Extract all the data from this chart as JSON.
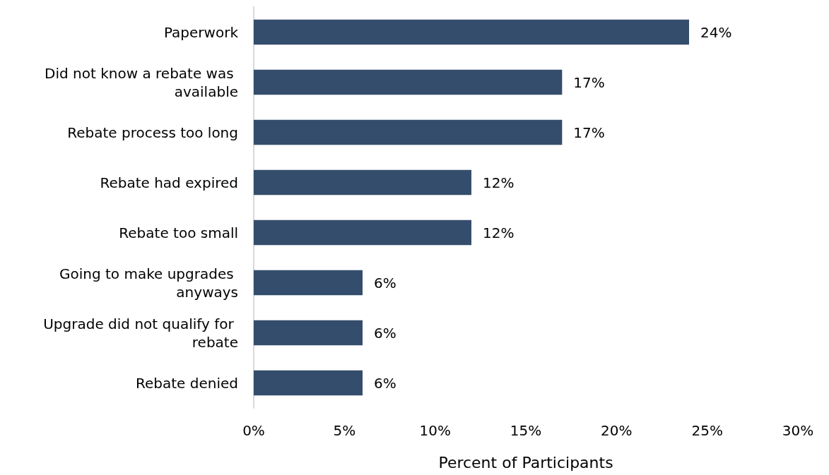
{
  "chart_data": {
    "type": "bar",
    "orientation": "horizontal",
    "xlabel": "Percent of Participants",
    "categories": [
      "Paperwork",
      "Did not know a rebate was available",
      "Rebate process too long",
      "Rebate had expired",
      "Rebate too small",
      "Going to make upgrades anyways",
      "Upgrade did not qualify for rebate",
      "Rebate denied"
    ],
    "values": [
      24,
      17,
      17,
      12,
      12,
      6,
      6,
      6
    ],
    "value_labels": [
      "24%",
      "17%",
      "17%",
      "12%",
      "12%",
      "6%",
      "6%",
      "6%"
    ],
    "color": "#344d6c",
    "xlim": [
      0,
      30
    ],
    "xticks": [
      {
        "value": 0,
        "label": "0%"
      },
      {
        "value": 5,
        "label": "5%"
      },
      {
        "value": 10,
        "label": "10%"
      },
      {
        "value": 15,
        "label": "15%"
      },
      {
        "value": 20,
        "label": "20%"
      },
      {
        "value": 25,
        "label": "25%"
      },
      {
        "value": 30,
        "label": "30%"
      }
    ],
    "grid": false
  }
}
